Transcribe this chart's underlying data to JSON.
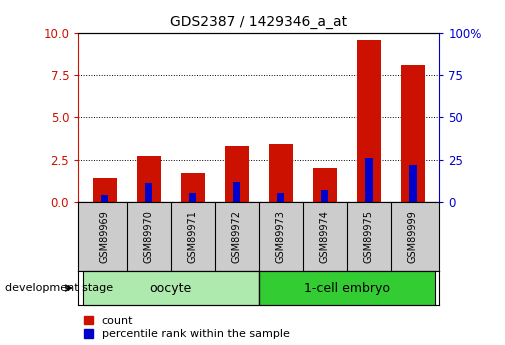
{
  "title": "GDS2387 / 1429346_a_at",
  "samples": [
    "GSM89969",
    "GSM89970",
    "GSM89971",
    "GSM89972",
    "GSM89973",
    "GSM89974",
    "GSM89975",
    "GSM89999"
  ],
  "count_values": [
    1.4,
    2.7,
    1.7,
    3.3,
    3.4,
    2.0,
    9.6,
    8.1
  ],
  "percentile_values": [
    4,
    11,
    5,
    12,
    5,
    7,
    26,
    22
  ],
  "ylim_left": [
    0,
    10
  ],
  "ylim_right": [
    0,
    100
  ],
  "yticks_left": [
    0,
    2.5,
    5,
    7.5,
    10
  ],
  "yticks_right": [
    0,
    25,
    50,
    75,
    100
  ],
  "groups": [
    {
      "label": "oocyte",
      "start": 0,
      "end": 4,
      "color": "#AEEAAE"
    },
    {
      "label": "1-cell embryo",
      "start": 4,
      "end": 8,
      "color": "#33CC33"
    }
  ],
  "bar_width": 0.55,
  "count_color": "#CC1100",
  "percentile_color": "#0000CC",
  "sample_bg_color": "#CCCCCC",
  "plot_bg": "#FFFFFF",
  "grid_color": "black",
  "left_tick_color": "#CC1100",
  "right_tick_color": "#0000CC",
  "legend_count_label": "count",
  "legend_percentile_label": "percentile rank within the sample",
  "dev_stage_label": "development stage",
  "group_label_fontsize": 9,
  "tick_fontsize": 8.5
}
